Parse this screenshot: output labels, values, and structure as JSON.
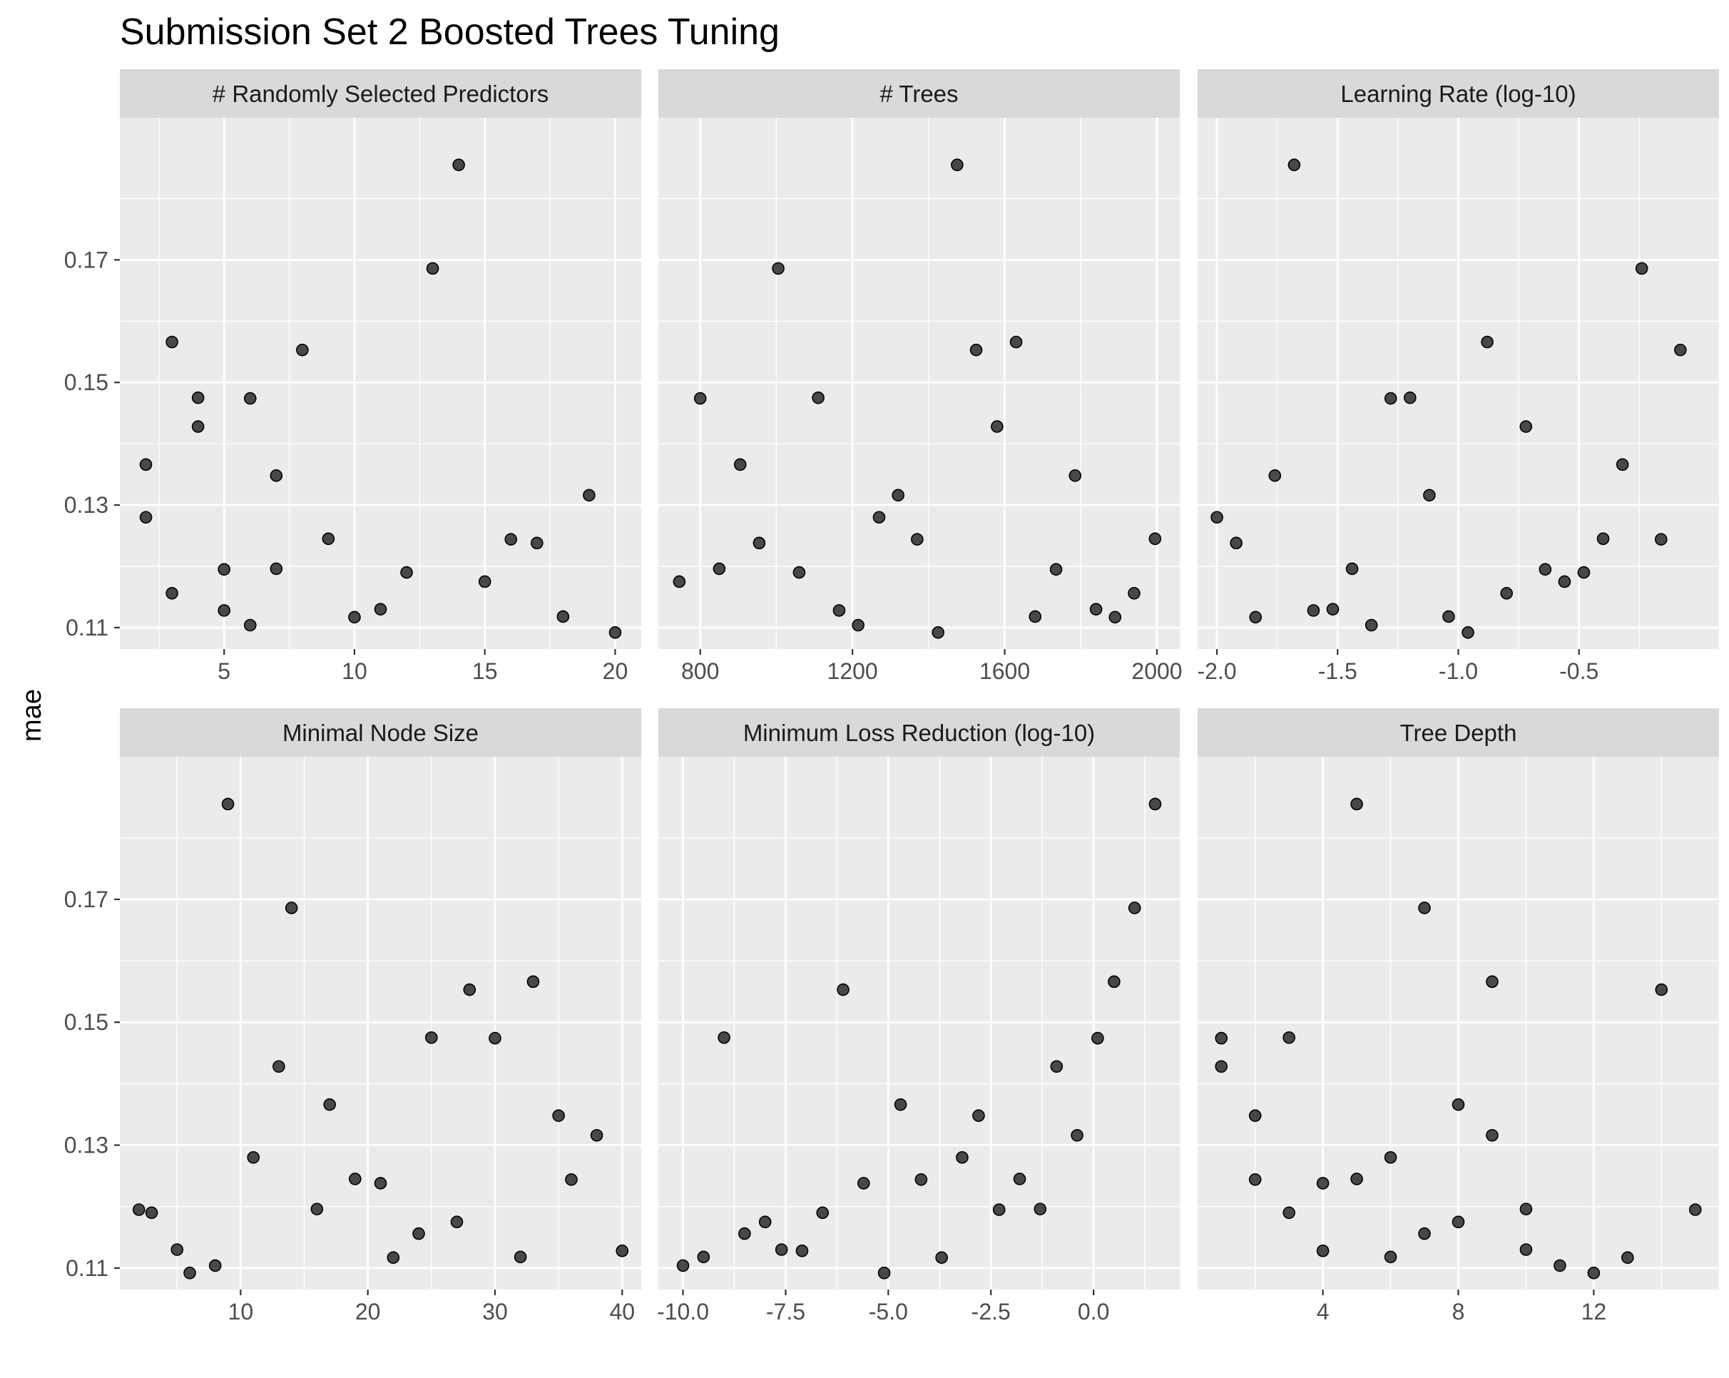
{
  "title": "Submission Set 2 Boosted Trees Tuning",
  "chart_data": {
    "type": "scatter",
    "ylabel": "mae",
    "ylim": [
      0.1065,
      0.1932
    ],
    "y_major_ticks": [
      0.11,
      0.13,
      0.15,
      0.17
    ],
    "y_tick_labels": [
      "0.11",
      "0.13",
      "0.15",
      "0.17"
    ],
    "point_color": "#1a1a1a",
    "panel_background": "#ebebeb",
    "strip_background": "#d9d9d9",
    "grid": true,
    "panels": [
      {
        "label": "# Randomly Selected Predictors",
        "xlim": [
          1,
          21
        ],
        "x_major_ticks": [
          5,
          10,
          15,
          20
        ],
        "x_tick_labels": [
          "5",
          "10",
          "15",
          "20"
        ],
        "points": [
          {
            "x": 2,
            "y": 0.1366
          },
          {
            "x": 2,
            "y": 0.128
          },
          {
            "x": 3,
            "y": 0.1566
          },
          {
            "x": 3,
            "y": 0.1156
          },
          {
            "x": 4,
            "y": 0.1475
          },
          {
            "x": 4,
            "y": 0.1428
          },
          {
            "x": 5,
            "y": 0.1195
          },
          {
            "x": 5,
            "y": 0.1128
          },
          {
            "x": 6,
            "y": 0.1474
          },
          {
            "x": 6,
            "y": 0.1104
          },
          {
            "x": 7,
            "y": 0.1348
          },
          {
            "x": 7,
            "y": 0.1196
          },
          {
            "x": 8,
            "y": 0.1553
          },
          {
            "x": 9,
            "y": 0.1245
          },
          {
            "x": 10,
            "y": 0.1117
          },
          {
            "x": 11,
            "y": 0.113
          },
          {
            "x": 12,
            "y": 0.119
          },
          {
            "x": 13,
            "y": 0.1686
          },
          {
            "x": 14,
            "y": 0.1855
          },
          {
            "x": 15,
            "y": 0.1175
          },
          {
            "x": 16,
            "y": 0.1244
          },
          {
            "x": 17,
            "y": 0.1238
          },
          {
            "x": 18,
            "y": 0.1118
          },
          {
            "x": 19,
            "y": 0.1316
          },
          {
            "x": 20,
            "y": 0.1092
          }
        ]
      },
      {
        "label": "# Trees",
        "xlim": [
          690,
          2060
        ],
        "x_major_ticks": [
          800,
          1200,
          1600,
          2000
        ],
        "x_tick_labels": [
          "800",
          "1200",
          "1600",
          "2000"
        ],
        "points": [
          {
            "x": 745,
            "y": 0.1175
          },
          {
            "x": 800,
            "y": 0.1474
          },
          {
            "x": 850,
            "y": 0.1196
          },
          {
            "x": 905,
            "y": 0.1366
          },
          {
            "x": 955,
            "y": 0.1238
          },
          {
            "x": 1005,
            "y": 0.1686
          },
          {
            "x": 1060,
            "y": 0.119
          },
          {
            "x": 1110,
            "y": 0.1475
          },
          {
            "x": 1165,
            "y": 0.1128
          },
          {
            "x": 1215,
            "y": 0.1104
          },
          {
            "x": 1270,
            "y": 0.128
          },
          {
            "x": 1320,
            "y": 0.1316
          },
          {
            "x": 1370,
            "y": 0.1244
          },
          {
            "x": 1425,
            "y": 0.1092
          },
          {
            "x": 1475,
            "y": 0.1855
          },
          {
            "x": 1525,
            "y": 0.1553
          },
          {
            "x": 1580,
            "y": 0.1428
          },
          {
            "x": 1630,
            "y": 0.1566
          },
          {
            "x": 1680,
            "y": 0.1118
          },
          {
            "x": 1735,
            "y": 0.1195
          },
          {
            "x": 1785,
            "y": 0.1348
          },
          {
            "x": 1840,
            "y": 0.113
          },
          {
            "x": 1890,
            "y": 0.1117
          },
          {
            "x": 1940,
            "y": 0.1156
          },
          {
            "x": 1995,
            "y": 0.1245
          }
        ]
      },
      {
        "label": "Learning Rate (log-10)",
        "xlim": [
          -2.08,
          0.08
        ],
        "x_major_ticks": [
          -2.0,
          -1.5,
          -1.0,
          -0.5
        ],
        "x_tick_labels": [
          "-2.0",
          "-1.5",
          "-1.0",
          "-0.5"
        ],
        "points": [
          {
            "x": -2.0,
            "y": 0.128
          },
          {
            "x": -1.92,
            "y": 0.1238
          },
          {
            "x": -1.84,
            "y": 0.1117
          },
          {
            "x": -1.76,
            "y": 0.1348
          },
          {
            "x": -1.68,
            "y": 0.1855
          },
          {
            "x": -1.6,
            "y": 0.1128
          },
          {
            "x": -1.52,
            "y": 0.113
          },
          {
            "x": -1.44,
            "y": 0.1196
          },
          {
            "x": -1.36,
            "y": 0.1104
          },
          {
            "x": -1.28,
            "y": 0.1474
          },
          {
            "x": -1.2,
            "y": 0.1475
          },
          {
            "x": -1.12,
            "y": 0.1316
          },
          {
            "x": -1.04,
            "y": 0.1118
          },
          {
            "x": -0.96,
            "y": 0.1092
          },
          {
            "x": -0.88,
            "y": 0.1566
          },
          {
            "x": -0.8,
            "y": 0.1156
          },
          {
            "x": -0.72,
            "y": 0.1428
          },
          {
            "x": -0.64,
            "y": 0.1195
          },
          {
            "x": -0.56,
            "y": 0.1175
          },
          {
            "x": -0.48,
            "y": 0.119
          },
          {
            "x": -0.4,
            "y": 0.1245
          },
          {
            "x": -0.32,
            "y": 0.1366
          },
          {
            "x": -0.24,
            "y": 0.1686
          },
          {
            "x": -0.16,
            "y": 0.1244
          },
          {
            "x": -0.08,
            "y": 0.1553
          }
        ]
      },
      {
        "label": "Minimal Node Size",
        "xlim": [
          0.5,
          41.5
        ],
        "x_major_ticks": [
          10,
          20,
          30,
          40
        ],
        "x_tick_labels": [
          "10",
          "20",
          "30",
          "40"
        ],
        "points": [
          {
            "x": 2,
            "y": 0.1195
          },
          {
            "x": 3,
            "y": 0.119
          },
          {
            "x": 5,
            "y": 0.113
          },
          {
            "x": 6,
            "y": 0.1092
          },
          {
            "x": 8,
            "y": 0.1104
          },
          {
            "x": 9,
            "y": 0.1855
          },
          {
            "x": 11,
            "y": 0.128
          },
          {
            "x": 13,
            "y": 0.1428
          },
          {
            "x": 14,
            "y": 0.1686
          },
          {
            "x": 16,
            "y": 0.1196
          },
          {
            "x": 17,
            "y": 0.1366
          },
          {
            "x": 19,
            "y": 0.1245
          },
          {
            "x": 21,
            "y": 0.1238
          },
          {
            "x": 22,
            "y": 0.1117
          },
          {
            "x": 24,
            "y": 0.1156
          },
          {
            "x": 25,
            "y": 0.1475
          },
          {
            "x": 27,
            "y": 0.1175
          },
          {
            "x": 28,
            "y": 0.1553
          },
          {
            "x": 30,
            "y": 0.1474
          },
          {
            "x": 32,
            "y": 0.1118
          },
          {
            "x": 33,
            "y": 0.1566
          },
          {
            "x": 35,
            "y": 0.1348
          },
          {
            "x": 36,
            "y": 0.1244
          },
          {
            "x": 38,
            "y": 0.1316
          },
          {
            "x": 40,
            "y": 0.1128
          }
        ]
      },
      {
        "label": "Minimum Loss Reduction (log-10)",
        "xlim": [
          -10.6,
          2.1
        ],
        "x_major_ticks": [
          -10.0,
          -7.5,
          -5.0,
          -2.5,
          0.0
        ],
        "x_tick_labels": [
          "-10.0",
          "-7.5",
          "-5.0",
          "-2.5",
          "0.0"
        ],
        "points": [
          {
            "x": -10.0,
            "y": 0.1104
          },
          {
            "x": -9.5,
            "y": 0.1118
          },
          {
            "x": -9.0,
            "y": 0.1475
          },
          {
            "x": -8.5,
            "y": 0.1156
          },
          {
            "x": -8.0,
            "y": 0.1175
          },
          {
            "x": -7.6,
            "y": 0.113
          },
          {
            "x": -7.1,
            "y": 0.1128
          },
          {
            "x": -6.6,
            "y": 0.119
          },
          {
            "x": -6.1,
            "y": 0.1553
          },
          {
            "x": -5.6,
            "y": 0.1238
          },
          {
            "x": -5.1,
            "y": 0.1092
          },
          {
            "x": -4.7,
            "y": 0.1366
          },
          {
            "x": -4.2,
            "y": 0.1244
          },
          {
            "x": -3.7,
            "y": 0.1117
          },
          {
            "x": -3.2,
            "y": 0.128
          },
          {
            "x": -2.8,
            "y": 0.1348
          },
          {
            "x": -2.3,
            "y": 0.1195
          },
          {
            "x": -1.8,
            "y": 0.1245
          },
          {
            "x": -1.3,
            "y": 0.1196
          },
          {
            "x": -0.9,
            "y": 0.1428
          },
          {
            "x": -0.4,
            "y": 0.1316
          },
          {
            "x": 0.1,
            "y": 0.1474
          },
          {
            "x": 0.5,
            "y": 0.1566
          },
          {
            "x": 1.0,
            "y": 0.1686
          },
          {
            "x": 1.5,
            "y": 0.1855
          }
        ]
      },
      {
        "label": "Tree Depth",
        "xlim": [
          0.3,
          15.7
        ],
        "x_major_ticks": [
          4,
          8,
          12
        ],
        "x_tick_labels": [
          "4",
          "8",
          "12"
        ],
        "points": [
          {
            "x": 1,
            "y": 0.1474
          },
          {
            "x": 1,
            "y": 0.1428
          },
          {
            "x": 2,
            "y": 0.1348
          },
          {
            "x": 2,
            "y": 0.1244
          },
          {
            "x": 3,
            "y": 0.1475
          },
          {
            "x": 3,
            "y": 0.119
          },
          {
            "x": 4,
            "y": 0.1238
          },
          {
            "x": 4,
            "y": 0.1128
          },
          {
            "x": 5,
            "y": 0.1855
          },
          {
            "x": 5,
            "y": 0.1245
          },
          {
            "x": 6,
            "y": 0.128
          },
          {
            "x": 6,
            "y": 0.1118
          },
          {
            "x": 7,
            "y": 0.1686
          },
          {
            "x": 7,
            "y": 0.1156
          },
          {
            "x": 8,
            "y": 0.1366
          },
          {
            "x": 8,
            "y": 0.1175
          },
          {
            "x": 9,
            "y": 0.1566
          },
          {
            "x": 9,
            "y": 0.1316
          },
          {
            "x": 10,
            "y": 0.1196
          },
          {
            "x": 10,
            "y": 0.113
          },
          {
            "x": 11,
            "y": 0.1104
          },
          {
            "x": 12,
            "y": 0.1092
          },
          {
            "x": 13,
            "y": 0.1117
          },
          {
            "x": 14,
            "y": 0.1553
          },
          {
            "x": 15,
            "y": 0.1195
          }
        ]
      }
    ]
  }
}
